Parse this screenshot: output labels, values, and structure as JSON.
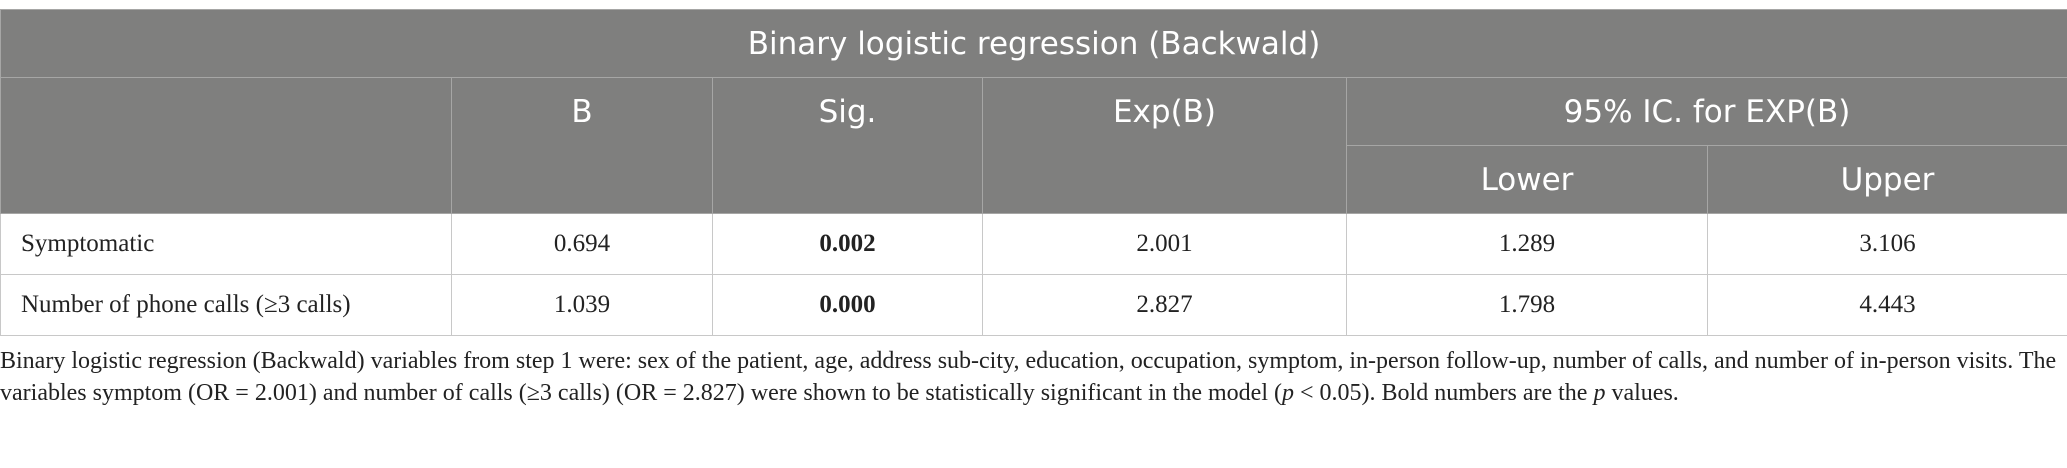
{
  "table": {
    "title": "Binary logistic regression (Backwald)",
    "header": [
      "",
      "B",
      "Sig.",
      "Exp(B)",
      "95% IC. for EXP(B)"
    ],
    "subheader": [
      "Lower",
      "Upper"
    ],
    "rows": [
      [
        "Symptomatic",
        "0.694",
        "0.002",
        "2.001",
        "1.289",
        "3.106"
      ],
      [
        "Number of phone calls (≥3 calls)",
        "1.039",
        "0.000",
        "2.827",
        "1.798",
        "4.443"
      ]
    ]
  },
  "footnote": [
    "Binary logistic regression (Backwald) variables from step 1 were: sex of the patient, age, address sub-city, education, occupation, symptom, in-person follow-up, number of calls, and number of in-person visits. The variables symptom (OR = 2.001) and number of calls (≥3 calls) (OR = 2.827) were shown to be statistically significant in the model (",
    "p",
    " < 0.05). Bold numbers are the ",
    "p",
    " values."
  ]
}
